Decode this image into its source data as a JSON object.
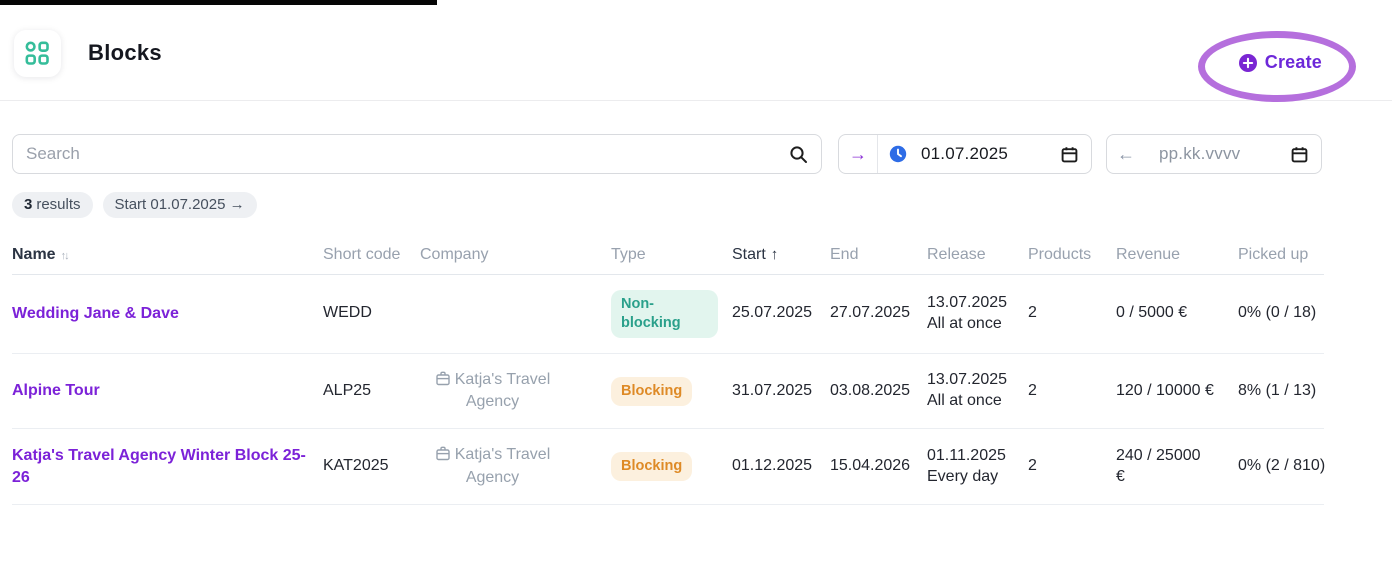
{
  "header": {
    "title": "Blocks",
    "create_label": "Create"
  },
  "toolbar": {
    "search": {
      "placeholder": "Search"
    },
    "date_from": {
      "arrow": "→",
      "value": "01.07.2025"
    },
    "date_to": {
      "arrow": "←",
      "placeholder": "pp.kk.vvvv"
    }
  },
  "filters": {
    "results_count": "3",
    "results_label": "results",
    "start_filter": "Start 01.07.2025 →"
  },
  "table": {
    "columns": [
      {
        "label": "Name",
        "sort": "both"
      },
      {
        "label": "Short code",
        "sort": ""
      },
      {
        "label": "Company",
        "sort": ""
      },
      {
        "label": "Type",
        "sort": ""
      },
      {
        "label": "Start",
        "sort": "asc"
      },
      {
        "label": "End",
        "sort": ""
      },
      {
        "label": "Release",
        "sort": ""
      },
      {
        "label": "Products",
        "sort": ""
      },
      {
        "label": "Revenue",
        "sort": ""
      },
      {
        "label": "Picked up",
        "sort": ""
      }
    ],
    "rows": [
      {
        "name": "Wedding Jane & Dave",
        "short_code": "WEDD",
        "company": "",
        "type": "Non-blocking",
        "type_variant": "green",
        "start": "25.07.2025",
        "end": "27.07.2025",
        "release_date": "13.07.2025",
        "release_mode": "All at once",
        "products": "2",
        "revenue": "0 / 5000 €",
        "picked_up": "0% (0 / 18)"
      },
      {
        "name": "Alpine Tour",
        "short_code": "ALP25",
        "company": "Katja's Travel Agency",
        "type": "Blocking",
        "type_variant": "orange",
        "start": "31.07.2025",
        "end": "03.08.2025",
        "release_date": "13.07.2025",
        "release_mode": "All at once",
        "products": "2",
        "revenue": "120 / 10000 €",
        "picked_up": "8% (1 / 13)"
      },
      {
        "name": "Katja's Travel Agency Winter Block 25-26",
        "short_code": "KAT2025",
        "company": "Katja's Travel Agency",
        "type": "Blocking",
        "type_variant": "orange",
        "start": "01.12.2025",
        "end": "15.04.2026",
        "release_date": "01.11.2025",
        "release_mode": "Every day",
        "products": "2",
        "revenue": "240 / 25000 €",
        "picked_up": "0% (2 / 810)"
      }
    ]
  },
  "colors": {
    "accent_purple": "#7c22d8",
    "icon_teal": "#35bd9a",
    "clock_blue": "#2e6ce6",
    "badge_green_bg": "#e2f5ee",
    "badge_green_text": "#2aa08b",
    "badge_orange_bg": "#fcf0de",
    "badge_orange_text": "#de8a26",
    "annotation_purple": "#b56fdd"
  }
}
